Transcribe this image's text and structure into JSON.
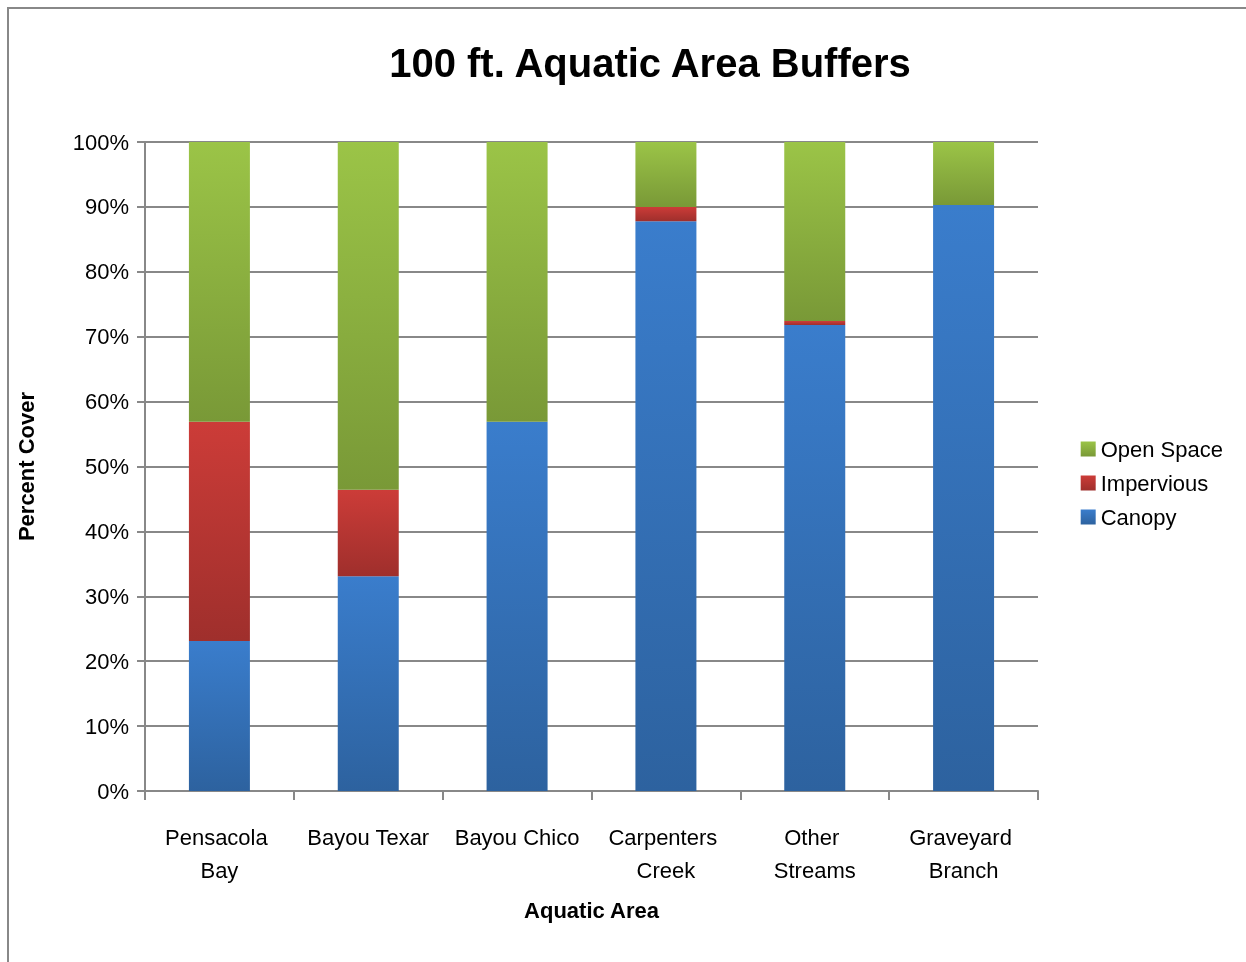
{
  "chart_data": {
    "type": "bar",
    "title": "100 ft. Aquatic Area Buffers",
    "xlabel": "Aquatic Area",
    "ylabel": "Percent Cover",
    "categories": [
      "Pensacola Bay",
      "Bayou Texar",
      "Bayou Chico",
      "Carpenters Creek",
      "Other Streams",
      "Graveyard Branch"
    ],
    "stacked": true,
    "series": [
      {
        "name": "Canopy",
        "color": "#3a7dcc",
        "values": [
          23.1,
          33.1,
          56.9,
          87.8,
          71.8,
          90.3
        ]
      },
      {
        "name": "Impervious",
        "color": "#cc3c38",
        "values": [
          33.8,
          13.3,
          0,
          2.2,
          0.6,
          0
        ]
      },
      {
        "name": "Open Space",
        "color": "#9bc447",
        "values": [
          43.1,
          53.6,
          43.1,
          10.0,
          27.6,
          9.7
        ]
      }
    ],
    "ylim": [
      0,
      100
    ],
    "yticks": [
      {
        "value": 0,
        "label": "0%"
      },
      {
        "value": 10,
        "label": "10%"
      },
      {
        "value": 20,
        "label": "20%"
      },
      {
        "value": 30,
        "label": "30%"
      },
      {
        "value": 40,
        "label": "40%"
      },
      {
        "value": 50,
        "label": "50%"
      },
      {
        "value": 60,
        "label": "60%"
      },
      {
        "value": 70,
        "label": "70%"
      },
      {
        "value": 80,
        "label": "80%"
      },
      {
        "value": 90,
        "label": "90%"
      },
      {
        "value": 100,
        "label": "100%"
      }
    ],
    "grid": "y",
    "legend": "right"
  }
}
